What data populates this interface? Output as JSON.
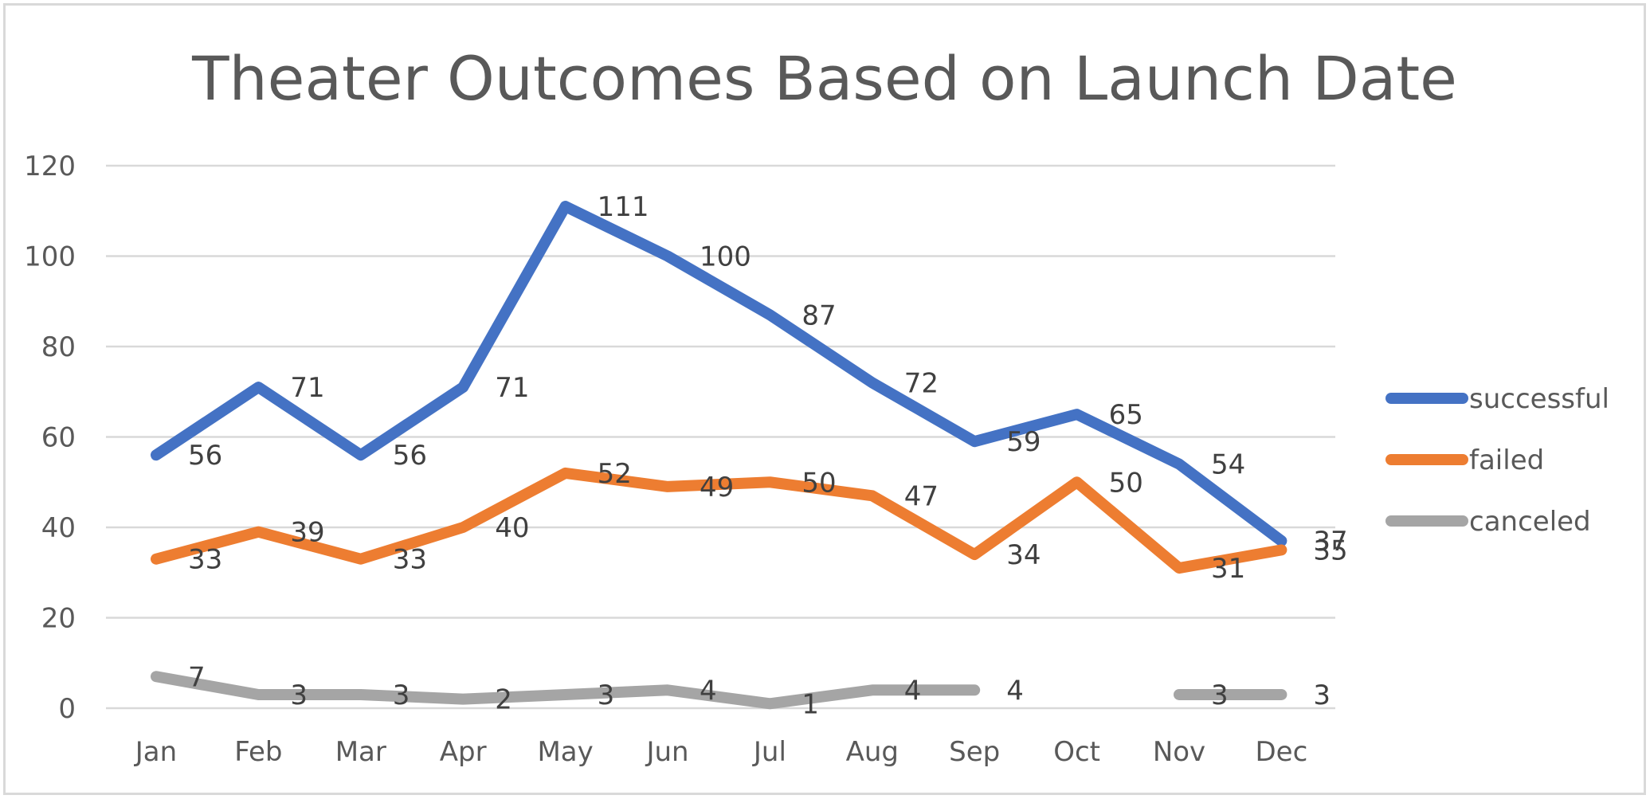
{
  "chart_data": {
    "type": "line",
    "title": "Theater Outcomes Based on Launch Date",
    "xlabel": "",
    "ylabel": "",
    "categories": [
      "Jan",
      "Feb",
      "Mar",
      "Apr",
      "May",
      "Jun",
      "Jul",
      "Aug",
      "Sep",
      "Oct",
      "Nov",
      "Dec"
    ],
    "ylim": [
      0,
      120
    ],
    "yticks": [
      "0",
      "20",
      "40",
      "60",
      "80",
      "100",
      "120"
    ],
    "grid": true,
    "legend_position": "right",
    "series": [
      {
        "name": "successful",
        "color": "#4472C4",
        "values": [
          56,
          71,
          56,
          71,
          111,
          100,
          87,
          72,
          59,
          65,
          54,
          37
        ]
      },
      {
        "name": "failed",
        "color": "#ED7D31",
        "values": [
          33,
          39,
          33,
          40,
          52,
          49,
          50,
          47,
          34,
          50,
          31,
          35
        ]
      },
      {
        "name": "canceled",
        "color": "#A5A5A5",
        "values": [
          7,
          3,
          3,
          2,
          3,
          4,
          1,
          4,
          4,
          null,
          3,
          3
        ]
      }
    ]
  }
}
